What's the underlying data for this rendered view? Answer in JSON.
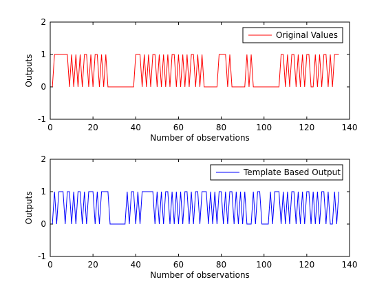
{
  "chart_data": [
    {
      "type": "line",
      "xlabel": "Number of observations",
      "ylabel": "Outputs",
      "xlim": [
        0,
        140
      ],
      "ylim": [
        -1,
        2
      ],
      "xticks": [
        "0",
        "20",
        "40",
        "60",
        "80",
        "100",
        "120",
        "140"
      ],
      "yticks": [
        "-1",
        "0",
        "1",
        "2"
      ],
      "grid": false,
      "legend_position": "top-right",
      "series": [
        {
          "name": "Original Values",
          "color": "#ff0000",
          "x": [
            1,
            2,
            3,
            4,
            5,
            6,
            7,
            8,
            9,
            10,
            11,
            12,
            13,
            14,
            15,
            16,
            17,
            18,
            19,
            20,
            21,
            22,
            23,
            24,
            25,
            26,
            27,
            28,
            29,
            30,
            31,
            32,
            33,
            34,
            35,
            36,
            37,
            38,
            39,
            40,
            41,
            42,
            43,
            44,
            45,
            46,
            47,
            48,
            49,
            50,
            51,
            52,
            53,
            54,
            55,
            56,
            57,
            58,
            59,
            60,
            61,
            62,
            63,
            64,
            65,
            66,
            67,
            68,
            69,
            70,
            71,
            72,
            73,
            74,
            75,
            76,
            77,
            78,
            79,
            80,
            81,
            82,
            83,
            84,
            85,
            86,
            87,
            88,
            89,
            90,
            91,
            92,
            93,
            94,
            95,
            96,
            97,
            98,
            99,
            100,
            101,
            102,
            103,
            104,
            105,
            106,
            107,
            108,
            109,
            110,
            111,
            112,
            113,
            114,
            115,
            116,
            117,
            118,
            119,
            120,
            121,
            122,
            123,
            124,
            125,
            126,
            127,
            128,
            129,
            130,
            131,
            132,
            133,
            134,
            135
          ],
          "values": [
            0,
            1,
            1,
            1,
            1,
            1,
            1,
            1,
            0,
            1,
            0,
            1,
            0,
            1,
            0,
            1,
            1,
            0,
            1,
            0,
            1,
            1,
            0,
            1,
            0,
            1,
            0,
            0,
            0,
            0,
            0,
            0,
            0,
            0,
            0,
            0,
            0,
            0,
            0,
            1,
            1,
            1,
            0,
            1,
            0,
            1,
            0,
            1,
            1,
            0,
            1,
            0,
            1,
            0,
            1,
            0,
            1,
            1,
            0,
            1,
            0,
            1,
            0,
            1,
            0,
            1,
            1,
            0,
            1,
            0,
            1,
            0,
            0,
            0,
            0,
            0,
            0,
            0,
            1,
            1,
            1,
            1,
            0,
            1,
            0,
            0,
            0,
            0,
            0,
            0,
            0,
            1,
            0,
            1,
            0,
            0,
            0,
            0,
            0,
            0,
            0,
            0,
            0,
            0,
            0,
            0,
            0,
            1,
            1,
            0,
            1,
            0,
            1,
            1,
            0,
            1,
            0,
            1,
            0,
            1,
            1,
            0,
            0,
            1,
            0,
            1,
            0,
            1,
            1,
            0,
            1,
            0,
            1,
            1,
            1
          ]
        }
      ]
    },
    {
      "type": "line",
      "xlabel": "Number of observations",
      "ylabel": "Outputs",
      "xlim": [
        0,
        140
      ],
      "ylim": [
        -1,
        2
      ],
      "xticks": [
        "0",
        "20",
        "40",
        "60",
        "80",
        "100",
        "120",
        "140"
      ],
      "yticks": [
        "-1",
        "0",
        "1",
        "2"
      ],
      "grid": false,
      "legend_position": "top-right",
      "series": [
        {
          "name": "Template Based Output",
          "color": "#0000ff",
          "x": [
            1,
            2,
            3,
            4,
            5,
            6,
            7,
            8,
            9,
            10,
            11,
            12,
            13,
            14,
            15,
            16,
            17,
            18,
            19,
            20,
            21,
            22,
            23,
            24,
            25,
            26,
            27,
            28,
            29,
            30,
            31,
            32,
            33,
            34,
            35,
            36,
            37,
            38,
            39,
            40,
            41,
            42,
            43,
            44,
            45,
            46,
            47,
            48,
            49,
            50,
            51,
            52,
            53,
            54,
            55,
            56,
            57,
            58,
            59,
            60,
            61,
            62,
            63,
            64,
            65,
            66,
            67,
            68,
            69,
            70,
            71,
            72,
            73,
            74,
            75,
            76,
            77,
            78,
            79,
            80,
            81,
            82,
            83,
            84,
            85,
            86,
            87,
            88,
            89,
            90,
            91,
            92,
            93,
            94,
            95,
            96,
            97,
            98,
            99,
            100,
            101,
            102,
            103,
            104,
            105,
            106,
            107,
            108,
            109,
            110,
            111,
            112,
            113,
            114,
            115,
            116,
            117,
            118,
            119,
            120,
            121,
            122,
            123,
            124,
            125,
            126,
            127,
            128,
            129,
            130,
            131,
            132,
            133,
            134,
            135
          ],
          "values": [
            0,
            1,
            0,
            1,
            1,
            1,
            0,
            1,
            1,
            0,
            1,
            0,
            1,
            1,
            0,
            1,
            0,
            1,
            1,
            1,
            0,
            1,
            0,
            1,
            1,
            1,
            1,
            0,
            0,
            0,
            0,
            0,
            0,
            0,
            0,
            1,
            0,
            1,
            1,
            0,
            1,
            0,
            1,
            1,
            1,
            1,
            1,
            1,
            0,
            1,
            0,
            1,
            0,
            1,
            1,
            0,
            1,
            0,
            1,
            0,
            1,
            0,
            1,
            1,
            0,
            1,
            0,
            1,
            1,
            0,
            1,
            1,
            1,
            0,
            1,
            0,
            1,
            0,
            1,
            1,
            0,
            1,
            0,
            1,
            1,
            0,
            1,
            0,
            1,
            0,
            1,
            0,
            0,
            0,
            1,
            0,
            1,
            1,
            0,
            0,
            0,
            0,
            1,
            0,
            1,
            1,
            1,
            0,
            1,
            0,
            1,
            0,
            1,
            1,
            0,
            1,
            0,
            1,
            0,
            1,
            1,
            0,
            1,
            0,
            1,
            0,
            1,
            1,
            0,
            1,
            0,
            0,
            1,
            0,
            1
          ]
        }
      ]
    }
  ]
}
